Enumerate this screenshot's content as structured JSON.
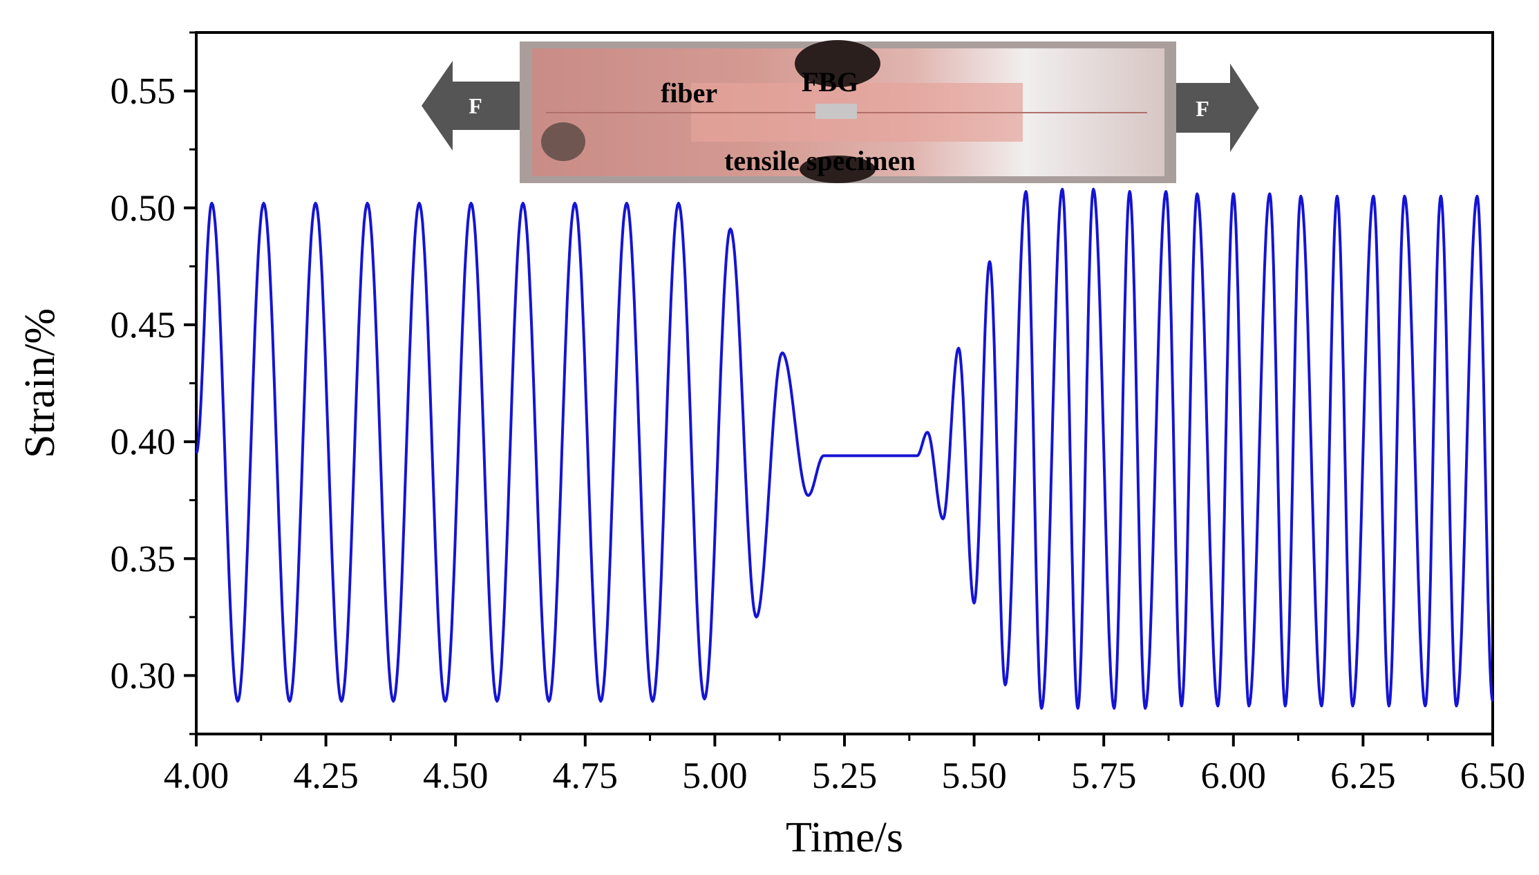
{
  "chart_data": {
    "type": "line",
    "title": "",
    "xlabel": "Time/s",
    "ylabel": "Strain/%",
    "xlim": [
      4.0,
      6.5
    ],
    "ylim": [
      0.275,
      0.575
    ],
    "x_ticks": [
      "4.00",
      "4.25",
      "4.50",
      "4.75",
      "5.00",
      "5.25",
      "5.50",
      "5.75",
      "6.00",
      "6.25",
      "6.50"
    ],
    "y_ticks": [
      "0.30",
      "0.35",
      "0.40",
      "0.45",
      "0.50",
      "0.55"
    ],
    "grid": false,
    "legend": "none",
    "series": [
      {
        "color": "#1414d4",
        "x": [
          4.0,
          4.03,
          4.08,
          4.13,
          4.18,
          4.23,
          4.28,
          4.33,
          4.38,
          4.43,
          4.48,
          4.53,
          4.58,
          4.63,
          4.68,
          4.73,
          4.78,
          4.83,
          4.88,
          4.93,
          4.98,
          5.03,
          5.08,
          5.13,
          5.18,
          5.21,
          5.25,
          5.3,
          5.35,
          5.39,
          5.41,
          5.44,
          5.47,
          5.5,
          5.53,
          5.56,
          5.6,
          5.63,
          5.67,
          5.7,
          5.73,
          5.77,
          5.8,
          5.83,
          5.87,
          5.9,
          5.93,
          5.97,
          6.0,
          6.03,
          6.07,
          6.1,
          6.13,
          6.17,
          6.2,
          6.23,
          6.27,
          6.3,
          6.33,
          6.37,
          6.4,
          6.43,
          6.47,
          6.5
        ],
        "y": [
          0.395,
          0.502,
          0.289,
          0.502,
          0.289,
          0.502,
          0.289,
          0.502,
          0.289,
          0.502,
          0.289,
          0.502,
          0.289,
          0.502,
          0.289,
          0.502,
          0.289,
          0.502,
          0.289,
          0.502,
          0.29,
          0.491,
          0.325,
          0.438,
          0.377,
          0.394,
          0.394,
          0.394,
          0.394,
          0.394,
          0.404,
          0.367,
          0.44,
          0.331,
          0.477,
          0.296,
          0.507,
          0.286,
          0.508,
          0.286,
          0.508,
          0.286,
          0.507,
          0.286,
          0.507,
          0.287,
          0.506,
          0.287,
          0.506,
          0.287,
          0.506,
          0.287,
          0.505,
          0.287,
          0.505,
          0.287,
          0.505,
          0.287,
          0.505,
          0.287,
          0.505,
          0.287,
          0.505,
          0.289
        ]
      }
    ],
    "annotations": [
      "fiber",
      "FBG",
      "tensile specimen",
      "F",
      "F"
    ]
  }
}
